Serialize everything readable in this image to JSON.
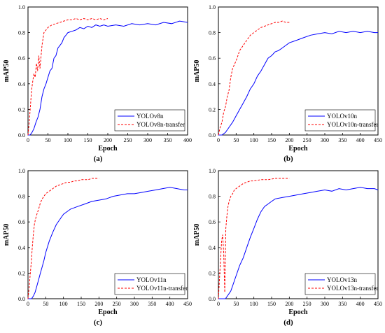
{
  "chart_data": [
    {
      "type": "line",
      "panel_label": "(a)",
      "xlabel": "Epoch",
      "ylabel": "mAP50",
      "xlim": [
        0,
        400
      ],
      "ylim": [
        0,
        1.0
      ],
      "xticks": [
        "0",
        "50",
        "100",
        "150",
        "200",
        "250",
        "300",
        "350",
        "400"
      ],
      "yticks": [
        "0.0",
        "0.2",
        "0.4",
        "0.6",
        "0.8",
        "1.0"
      ],
      "legend": "bottom-right",
      "series": [
        {
          "name": "YOLOv8n",
          "color": "#0000ff",
          "dash": "solid",
          "x": [
            0,
            5,
            10,
            15,
            20,
            25,
            30,
            35,
            40,
            45,
            50,
            55,
            60,
            65,
            70,
            75,
            80,
            85,
            90,
            95,
            100,
            110,
            120,
            130,
            140,
            150,
            160,
            170,
            180,
            190,
            200,
            220,
            240,
            260,
            280,
            300,
            320,
            340,
            360,
            380,
            400
          ],
          "y": [
            0.0,
            0.0,
            0.02,
            0.05,
            0.1,
            0.14,
            0.2,
            0.3,
            0.36,
            0.4,
            0.45,
            0.5,
            0.52,
            0.6,
            0.62,
            0.68,
            0.7,
            0.72,
            0.76,
            0.78,
            0.8,
            0.81,
            0.82,
            0.84,
            0.83,
            0.85,
            0.84,
            0.86,
            0.85,
            0.86,
            0.85,
            0.86,
            0.85,
            0.87,
            0.86,
            0.87,
            0.86,
            0.88,
            0.87,
            0.89,
            0.88
          ]
        },
        {
          "name": "YOLOv8n-transfer",
          "color": "#ff0000",
          "dash": "dashed",
          "x": [
            0,
            3,
            6,
            9,
            12,
            15,
            18,
            21,
            24,
            27,
            30,
            35,
            40,
            45,
            50,
            60,
            70,
            80,
            90,
            100,
            110,
            120,
            130,
            140,
            150,
            160,
            170,
            180,
            190,
            200
          ],
          "y": [
            0.0,
            0.1,
            0.22,
            0.35,
            0.42,
            0.48,
            0.45,
            0.56,
            0.5,
            0.62,
            0.52,
            0.7,
            0.8,
            0.82,
            0.84,
            0.86,
            0.87,
            0.88,
            0.89,
            0.9,
            0.9,
            0.91,
            0.9,
            0.91,
            0.9,
            0.91,
            0.9,
            0.91,
            0.9,
            0.91
          ]
        }
      ]
    },
    {
      "type": "line",
      "panel_label": "(b)",
      "xlabel": "Epoch",
      "ylabel": "mAP50",
      "xlim": [
        0,
        450
      ],
      "ylim": [
        0,
        1.0
      ],
      "xticks": [
        "0",
        "50",
        "100",
        "150",
        "200",
        "250",
        "300",
        "350",
        "400",
        "450"
      ],
      "yticks": [
        "0.0",
        "0.2",
        "0.4",
        "0.6",
        "0.8",
        "1.0"
      ],
      "legend": "bottom-right",
      "series": [
        {
          "name": "YOLOv10n",
          "color": "#0000ff",
          "dash": "solid",
          "x": [
            0,
            10,
            20,
            30,
            40,
            50,
            60,
            70,
            80,
            90,
            100,
            110,
            120,
            130,
            140,
            150,
            160,
            170,
            180,
            190,
            200,
            220,
            240,
            260,
            280,
            300,
            320,
            340,
            360,
            380,
            400,
            420,
            440,
            450
          ],
          "y": [
            0.0,
            0.0,
            0.02,
            0.06,
            0.1,
            0.15,
            0.2,
            0.25,
            0.3,
            0.36,
            0.4,
            0.46,
            0.5,
            0.55,
            0.6,
            0.62,
            0.65,
            0.66,
            0.68,
            0.7,
            0.72,
            0.74,
            0.76,
            0.78,
            0.79,
            0.8,
            0.79,
            0.81,
            0.8,
            0.81,
            0.8,
            0.81,
            0.8,
            0.8
          ]
        },
        {
          "name": "YOLOv10n-transfer",
          "color": "#ff0000",
          "dash": "dashed",
          "x": [
            0,
            5,
            10,
            15,
            20,
            25,
            30,
            35,
            40,
            45,
            50,
            55,
            60,
            65,
            70,
            80,
            90,
            100,
            110,
            120,
            130,
            140,
            150,
            160,
            170,
            180,
            190,
            200
          ],
          "y": [
            0.0,
            0.06,
            0.1,
            0.18,
            0.22,
            0.3,
            0.35,
            0.45,
            0.52,
            0.55,
            0.58,
            0.62,
            0.66,
            0.68,
            0.7,
            0.74,
            0.78,
            0.8,
            0.82,
            0.84,
            0.85,
            0.86,
            0.87,
            0.88,
            0.88,
            0.89,
            0.88,
            0.88
          ]
        }
      ]
    },
    {
      "type": "line",
      "panel_label": "(c)",
      "xlabel": "Epoch",
      "ylabel": "mAP50",
      "xlim": [
        0,
        450
      ],
      "ylim": [
        0,
        1.0
      ],
      "xticks": [
        "0",
        "50",
        "100",
        "150",
        "200",
        "250",
        "300",
        "350",
        "400",
        "450"
      ],
      "yticks": [
        "0.0",
        "0.2",
        "0.4",
        "0.6",
        "0.8",
        "1.0"
      ],
      "legend": "bottom-right",
      "series": [
        {
          "name": "YOLOv11n",
          "color": "#0000ff",
          "dash": "solid",
          "x": [
            0,
            10,
            15,
            20,
            25,
            30,
            35,
            40,
            45,
            50,
            60,
            70,
            80,
            90,
            100,
            120,
            140,
            160,
            180,
            200,
            220,
            240,
            260,
            280,
            300,
            320,
            340,
            360,
            380,
            400,
            420,
            440,
            450
          ],
          "y": [
            0.0,
            0.0,
            0.02,
            0.05,
            0.1,
            0.15,
            0.2,
            0.25,
            0.3,
            0.36,
            0.45,
            0.52,
            0.58,
            0.62,
            0.66,
            0.7,
            0.72,
            0.74,
            0.76,
            0.77,
            0.78,
            0.8,
            0.81,
            0.82,
            0.82,
            0.83,
            0.84,
            0.85,
            0.86,
            0.87,
            0.86,
            0.85,
            0.85
          ]
        },
        {
          "name": "YOLOv11n-transfer",
          "color": "#ff0000",
          "dash": "dashed",
          "x": [
            0,
            3,
            6,
            9,
            12,
            15,
            18,
            21,
            25,
            30,
            35,
            40,
            45,
            50,
            60,
            70,
            80,
            90,
            100,
            110,
            120,
            130,
            140,
            150,
            160,
            170,
            180,
            190,
            200
          ],
          "y": [
            0.0,
            0.08,
            0.18,
            0.28,
            0.4,
            0.5,
            0.58,
            0.62,
            0.66,
            0.7,
            0.75,
            0.78,
            0.8,
            0.82,
            0.84,
            0.86,
            0.88,
            0.89,
            0.9,
            0.91,
            0.91,
            0.92,
            0.92,
            0.93,
            0.93,
            0.93,
            0.94,
            0.94,
            0.94
          ]
        }
      ]
    },
    {
      "type": "line",
      "panel_label": "(d)",
      "xlabel": "Epoch",
      "ylabel": "mAP50",
      "xlim": [
        0,
        450
      ],
      "ylim": [
        0,
        1.0
      ],
      "xticks": [
        "0",
        "50",
        "100",
        "150",
        "200",
        "250",
        "300",
        "350",
        "400",
        "450"
      ],
      "yticks": [
        "0.0",
        "0.2",
        "0.4",
        "0.6",
        "0.8",
        "1.0"
      ],
      "legend": "bottom-right",
      "series": [
        {
          "name": "YOLOv13n",
          "color": "#0000ff",
          "dash": "solid",
          "x": [
            0,
            10,
            20,
            25,
            30,
            35,
            40,
            45,
            50,
            55,
            60,
            70,
            80,
            90,
            100,
            110,
            120,
            130,
            140,
            150,
            160,
            180,
            200,
            220,
            240,
            260,
            280,
            300,
            320,
            340,
            360,
            380,
            400,
            420,
            440,
            450
          ],
          "y": [
            0.0,
            0.0,
            0.0,
            0.02,
            0.04,
            0.06,
            0.1,
            0.14,
            0.18,
            0.22,
            0.26,
            0.32,
            0.4,
            0.48,
            0.55,
            0.62,
            0.68,
            0.72,
            0.74,
            0.76,
            0.78,
            0.79,
            0.8,
            0.81,
            0.82,
            0.83,
            0.84,
            0.85,
            0.84,
            0.86,
            0.85,
            0.86,
            0.87,
            0.86,
            0.86,
            0.85
          ]
        },
        {
          "name": "YOLOv13n-transfer",
          "color": "#ff0000",
          "dash": "dashed",
          "x": [
            0,
            3,
            6,
            9,
            12,
            15,
            18,
            21,
            24,
            27,
            30,
            35,
            40,
            45,
            50,
            60,
            70,
            80,
            90,
            100,
            120,
            140,
            160,
            180,
            200
          ],
          "y": [
            0.0,
            0.15,
            0.3,
            0.45,
            0.5,
            0.35,
            0.05,
            0.55,
            0.65,
            0.72,
            0.76,
            0.8,
            0.82,
            0.85,
            0.86,
            0.88,
            0.9,
            0.91,
            0.92,
            0.92,
            0.93,
            0.93,
            0.94,
            0.94,
            0.94
          ]
        }
      ]
    }
  ]
}
